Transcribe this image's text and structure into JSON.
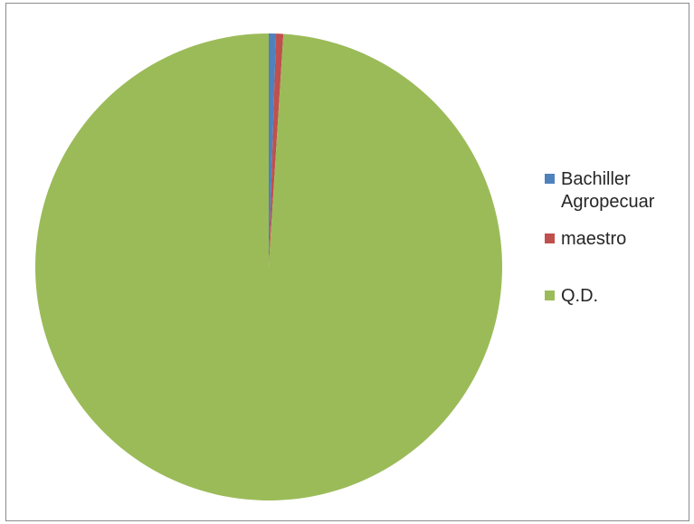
{
  "chart_data": {
    "type": "pie",
    "categories": [
      "Bachiller Agropecuar",
      "maestro",
      "Q.D."
    ],
    "values": [
      0.5,
      0.5,
      99.0
    ],
    "colors": [
      "#4f81bd",
      "#c0504d",
      "#9bbb59"
    ],
    "legend_position": "right",
    "start_angle_deg": 0
  },
  "legend": {
    "items": [
      {
        "line1": "Bachiller",
        "line2": "Agropecuar",
        "color": "#4f81bd"
      },
      {
        "line1": "maestro",
        "line2": "",
        "color": "#c0504d"
      },
      {
        "line1": "Q.D.",
        "line2": "",
        "color": "#9bbb59"
      }
    ]
  }
}
